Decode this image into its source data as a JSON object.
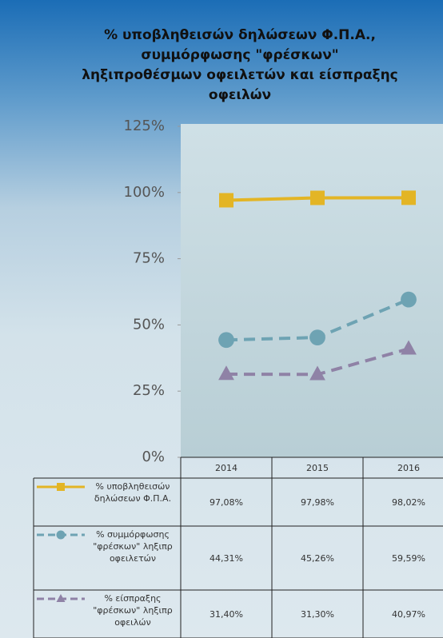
{
  "chart_data": {
    "type": "line",
    "title": [
      "% υποβληθεισών δηλώσεων Φ.Π.Α.,",
      "συμμόρφωσης \"φρέσκων\"",
      "ληξιπροθέσμων οφειλετών και είσπραξης",
      "οφειλών"
    ],
    "categories": [
      "2014",
      "2015",
      "2016"
    ],
    "ylim": [
      0,
      125
    ],
    "yticks": [
      {
        "value": 0,
        "label": "0%"
      },
      {
        "value": 25,
        "label": "25%"
      },
      {
        "value": 50,
        "label": "50%"
      },
      {
        "value": 75,
        "label": "75%"
      },
      {
        "value": 100,
        "label": "100%"
      },
      {
        "value": 125,
        "label": "125%"
      }
    ],
    "series": [
      {
        "name": "% υποβληθεισών δηλώσεων Φ.Π.Α.",
        "color": "#e3b525",
        "dashed": false,
        "marker": "square",
        "values": [
          97.08,
          97.98,
          98.02
        ],
        "value_labels": [
          "97,08%",
          "97,98%",
          "98,02%"
        ]
      },
      {
        "name": "% συμμόρφωσης \"φρέσκων\" ληξιπρ οφειλετών",
        "color": "#6ea3b3",
        "dashed": true,
        "marker": "circle",
        "values": [
          44.31,
          45.26,
          59.59
        ],
        "value_labels": [
          "44,31%",
          "45,26%",
          "59,59%"
        ]
      },
      {
        "name": "% είσπραξης \"φρέσκων\" ληξιπρ οφειλών",
        "color": "#8f82a6",
        "dashed": true,
        "marker": "triangle",
        "values": [
          31.4,
          31.3,
          40.97
        ],
        "value_labels": [
          "31,40%",
          "31,30%",
          "40,97%"
        ]
      }
    ]
  }
}
